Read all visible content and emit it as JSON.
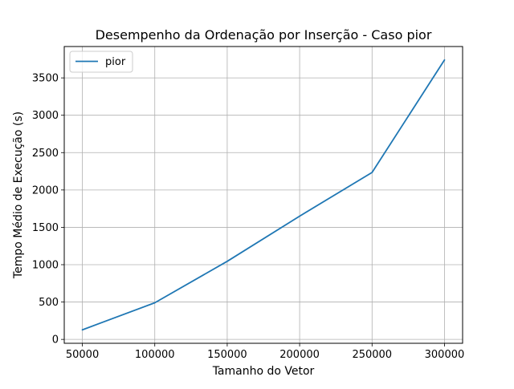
{
  "chart_data": {
    "type": "line",
    "title": "Desempenho da Ordenação por Inserção - Caso pior",
    "xlabel": "Tamanho do Vetor",
    "ylabel": "Tempo Médio de Execução (s)",
    "x": [
      50000,
      100000,
      150000,
      200000,
      250000,
      300000
    ],
    "series": [
      {
        "name": "pior",
        "values": [
          128,
          490,
          1045,
          1650,
          2235,
          3740
        ],
        "color": "#1f77b4"
      }
    ],
    "xlim": [
      37500,
      312500
    ],
    "ylim": [
      -52,
      3920
    ],
    "xticks": [
      50000,
      100000,
      150000,
      200000,
      250000,
      300000
    ],
    "yticks": [
      0,
      500,
      1000,
      1500,
      2000,
      2500,
      3000,
      3500
    ],
    "grid": true,
    "legend_position": "upper-left"
  }
}
